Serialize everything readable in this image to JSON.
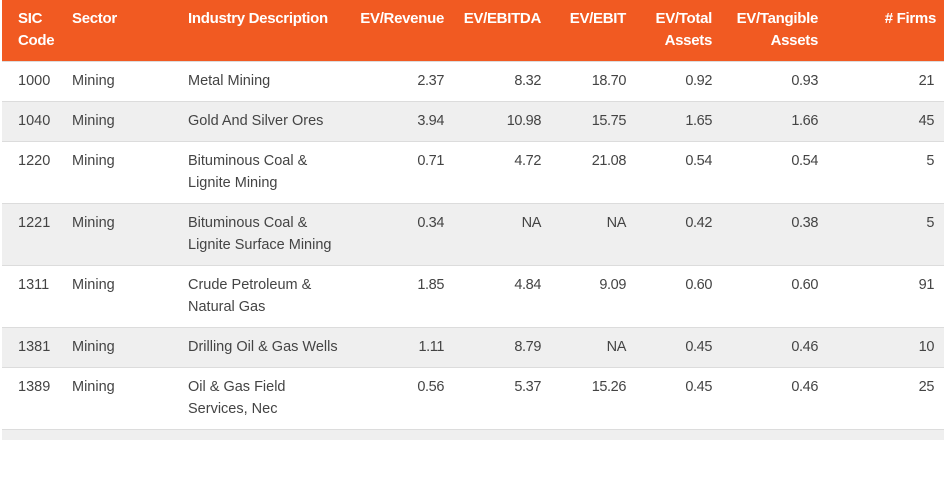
{
  "table": {
    "headers": {
      "sic_code": "SIC Code",
      "sector": "Sector",
      "industry": "Industry Description",
      "ev_revenue": "EV/Revenue",
      "ev_ebitda": "EV/EBITDA",
      "ev_ebit": "EV/EBIT",
      "ev_total_assets": "EV/Total Assets",
      "ev_tangible_assets": "EV/Tangible Assets",
      "firms": "# Firms"
    },
    "rows": [
      {
        "sic": "1000",
        "sector": "Mining",
        "industry": "Metal Mining",
        "ev_revenue": "2.37",
        "ev_ebitda": "8.32",
        "ev_ebit": "18.70",
        "ev_total_assets": "0.92",
        "ev_tangible_assets": "0.93",
        "firms": "21"
      },
      {
        "sic": "1040",
        "sector": "Mining",
        "industry": "Gold And Silver Ores",
        "ev_revenue": "3.94",
        "ev_ebitda": "10.98",
        "ev_ebit": "15.75",
        "ev_total_assets": "1.65",
        "ev_tangible_assets": "1.66",
        "firms": "45"
      },
      {
        "sic": "1220",
        "sector": "Mining",
        "industry": "Bituminous Coal & Lignite Mining",
        "ev_revenue": "0.71",
        "ev_ebitda": "4.72",
        "ev_ebit": "21.08",
        "ev_total_assets": "0.54",
        "ev_tangible_assets": "0.54",
        "firms": "5"
      },
      {
        "sic": "1221",
        "sector": "Mining",
        "industry": "Bituminous Coal & Lignite Surface Mining",
        "ev_revenue": "0.34",
        "ev_ebitda": "NA",
        "ev_ebit": "NA",
        "ev_total_assets": "0.42",
        "ev_tangible_assets": "0.38",
        "firms": "5"
      },
      {
        "sic": "1311",
        "sector": "Mining",
        "industry": "Crude Petroleum & Natural Gas",
        "ev_revenue": "1.85",
        "ev_ebitda": "4.84",
        "ev_ebit": "9.09",
        "ev_total_assets": "0.60",
        "ev_tangible_assets": "0.60",
        "firms": "91"
      },
      {
        "sic": "1381",
        "sector": "Mining",
        "industry": "Drilling Oil & Gas Wells",
        "ev_revenue": "1.11",
        "ev_ebitda": "8.79",
        "ev_ebit": "NA",
        "ev_total_assets": "0.45",
        "ev_tangible_assets": "0.46",
        "firms": "10"
      },
      {
        "sic": "1389",
        "sector": "Mining",
        "industry": "Oil & Gas Field Services, Nec",
        "ev_revenue": "0.56",
        "ev_ebitda": "5.37",
        "ev_ebit": "15.26",
        "ev_total_assets": "0.45",
        "ev_tangible_assets": "0.46",
        "firms": "25"
      }
    ]
  },
  "colors": {
    "header_bg": "#f15a22",
    "header_text": "#ffffff",
    "row_alt_bg": "#efefef",
    "row_bg": "#ffffff",
    "text": "#444444"
  }
}
